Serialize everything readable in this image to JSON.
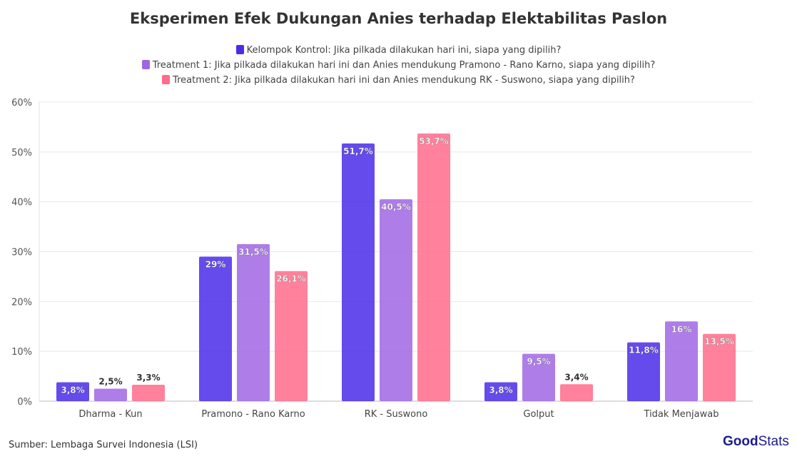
{
  "chart_data": {
    "type": "bar",
    "title": "Eksperimen Efek Dukungan Anies terhadap Elektabilitas Paslon",
    "categories": [
      "Dharma - Kun",
      "Pramono - Rano Karno",
      "RK - Suswono",
      "Golput",
      "Tidak Menjawab"
    ],
    "series": [
      {
        "name": "Kelompok Kontrol: Jika pilkada dilakukan hari ini, siapa yang dipilih?",
        "values": [
          3.8,
          29,
          51.7,
          3.8,
          11.8
        ],
        "labels": [
          "3,8%",
          "29%",
          "51,7%",
          "3,8%",
          "11,8%"
        ],
        "color": "#4a2ce8"
      },
      {
        "name": "Treatment 1: Jika pilkada dilakukan hari ini dan Anies mendukung Pramono - Rano Karno, siapa yang dipilih?",
        "values": [
          2.5,
          31.5,
          40.5,
          9.5,
          16
        ],
        "labels": [
          "2,5%",
          "31,5%",
          "40,5%",
          "9,5%",
          "16%"
        ],
        "color": "#a066e4"
      },
      {
        "name": "Treatment 2: Jika pilkada dilakukan hari ini dan Anies mendukung RK - Suswono, siapa yang dipilih?",
        "values": [
          3.3,
          26.1,
          53.7,
          3.4,
          13.5
        ],
        "labels": [
          "3,3%",
          "26,1%",
          "53,7%",
          "3,4%",
          "13,5%"
        ],
        "color": "#ff6b8a"
      }
    ],
    "yticks": [
      "0%",
      "10%",
      "20%",
      "30%",
      "40%",
      "50%",
      "60%"
    ],
    "ylim": [
      0,
      60
    ],
    "grid": true,
    "legend": "top-center",
    "xlabel": "",
    "ylabel": ""
  },
  "source": "Sumber: Lembaga Survei Indonesia (LSI)",
  "logo": {
    "part1": "Good",
    "part2": "Stats"
  }
}
